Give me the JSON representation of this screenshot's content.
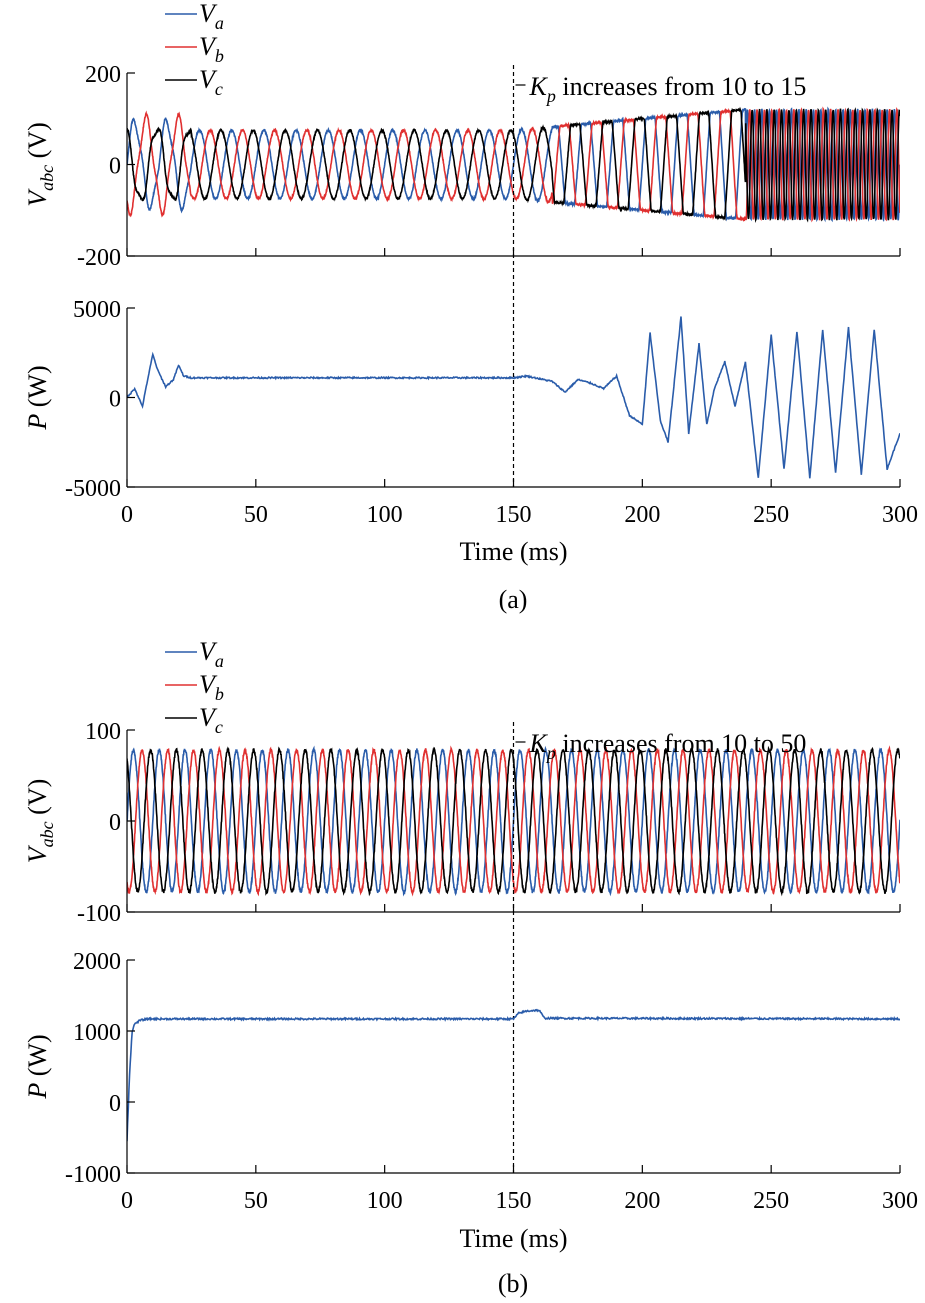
{
  "figure": {
    "captions": [
      "(a)",
      "(b)"
    ],
    "time_axis_label": "Time (ms)"
  },
  "chart_data": [
    {
      "type": "line",
      "panel": "a-top",
      "ylabel_main": "V",
      "ylabel_sub": "abc",
      "ylabel_unit": " (V)",
      "xlim": [
        0,
        300
      ],
      "ylim": [
        -200,
        200
      ],
      "xticks": [
        0,
        50,
        100,
        150,
        200,
        250,
        300
      ],
      "yticks": [
        -200,
        0,
        200
      ],
      "legend": {
        "placement": "top-left",
        "entries": [
          {
            "main": "V",
            "sub": "a"
          },
          {
            "main": "V",
            "sub": "b"
          },
          {
            "main": "V",
            "sub": "c"
          }
        ]
      },
      "annotation": {
        "x": 150,
        "main": "K",
        "sub": "p",
        "text": " increases from 10 to 15"
      },
      "series": [
        {
          "key": "Va",
          "color": "#2a5caa",
          "freq_hz": 80,
          "phase_deg": 0,
          "amplitude_stable": 75,
          "amplitude_unstable": 120
        },
        {
          "key": "Vb",
          "color": "#e03030",
          "freq_hz": 80,
          "phase_deg": -120,
          "amplitude_stable": 75,
          "amplitude_unstable": 120
        },
        {
          "key": "Vc",
          "color": "#000000",
          "freq_hz": 80,
          "phase_deg": 120,
          "amplitude_stable": 75,
          "amplitude_unstable": 120
        }
      ]
    },
    {
      "type": "line",
      "panel": "a-bottom",
      "ylabel_main": "P",
      "ylabel_unit": " (W)",
      "xlim": [
        0,
        300
      ],
      "ylim": [
        -5000,
        5000
      ],
      "xticks": [
        0,
        50,
        100,
        150,
        200,
        250,
        300
      ],
      "yticks": [
        -5000,
        0,
        5000
      ],
      "xlabel": "Time (ms)",
      "series": [
        {
          "key": "P",
          "color": "#2a5caa",
          "x": [
            0,
            3,
            6,
            8,
            10,
            12,
            15,
            18,
            20,
            22,
            25,
            30,
            60,
            100,
            150,
            155,
            160,
            165,
            170,
            175,
            180,
            185,
            190,
            195,
            200,
            203,
            207,
            210,
            215,
            218,
            222,
            225,
            228,
            232,
            236,
            240,
            245,
            250,
            255,
            260,
            265,
            270,
            275,
            280,
            285,
            290,
            295,
            300
          ],
          "y": [
            0,
            500,
            -500,
            1000,
            2400,
            1500,
            600,
            1000,
            1800,
            1200,
            1100,
            1100,
            1100,
            1100,
            1100,
            1200,
            1050,
            900,
            300,
            1000,
            800,
            500,
            1200,
            -1000,
            -1500,
            3600,
            -1300,
            -2500,
            4500,
            -2000,
            3000,
            -1500,
            500,
            2000,
            -500,
            2000,
            -4500,
            3500,
            -4000,
            3700,
            -4500,
            3800,
            -4200,
            3900,
            -4300,
            3800,
            -4000,
            -2000
          ]
        }
      ]
    },
    {
      "type": "line",
      "panel": "b-top",
      "ylabel_main": "V",
      "ylabel_sub": "abc",
      "ylabel_unit": " (V)",
      "xlim": [
        0,
        300
      ],
      "ylim": [
        -100,
        100
      ],
      "xticks": [
        0,
        50,
        100,
        150,
        200,
        250,
        300
      ],
      "yticks": [
        -100,
        0,
        100
      ],
      "legend": {
        "placement": "top-left",
        "entries": [
          {
            "main": "V",
            "sub": "a"
          },
          {
            "main": "V",
            "sub": "b"
          },
          {
            "main": "V",
            "sub": "c"
          }
        ]
      },
      "annotation": {
        "x": 150,
        "main": "K",
        "sub": "p",
        "text": " increases from 10 to 50"
      },
      "series": [
        {
          "key": "Va",
          "color": "#2a5caa",
          "freq_hz": 100,
          "phase_deg": 0,
          "amplitude": 78
        },
        {
          "key": "Vb",
          "color": "#e03030",
          "freq_hz": 100,
          "phase_deg": -120,
          "amplitude": 78
        },
        {
          "key": "Vc",
          "color": "#000000",
          "freq_hz": 100,
          "phase_deg": 120,
          "amplitude": 78
        }
      ]
    },
    {
      "type": "line",
      "panel": "b-bottom",
      "ylabel_main": "P",
      "ylabel_unit": " (W)",
      "xlim": [
        0,
        300
      ],
      "ylim": [
        -1000,
        2000
      ],
      "xticks": [
        0,
        50,
        100,
        150,
        200,
        250,
        300
      ],
      "yticks": [
        -1000,
        0,
        1000,
        2000
      ],
      "xlabel": "Time (ms)",
      "series": [
        {
          "key": "P",
          "color": "#2a5caa",
          "x": [
            0,
            1,
            2,
            3,
            5,
            8,
            150,
            152,
            155,
            158,
            160,
            162,
            300
          ],
          "y": [
            -550,
            400,
            1000,
            1100,
            1150,
            1170,
            1170,
            1250,
            1280,
            1290,
            1290,
            1180,
            1170
          ]
        }
      ]
    }
  ]
}
